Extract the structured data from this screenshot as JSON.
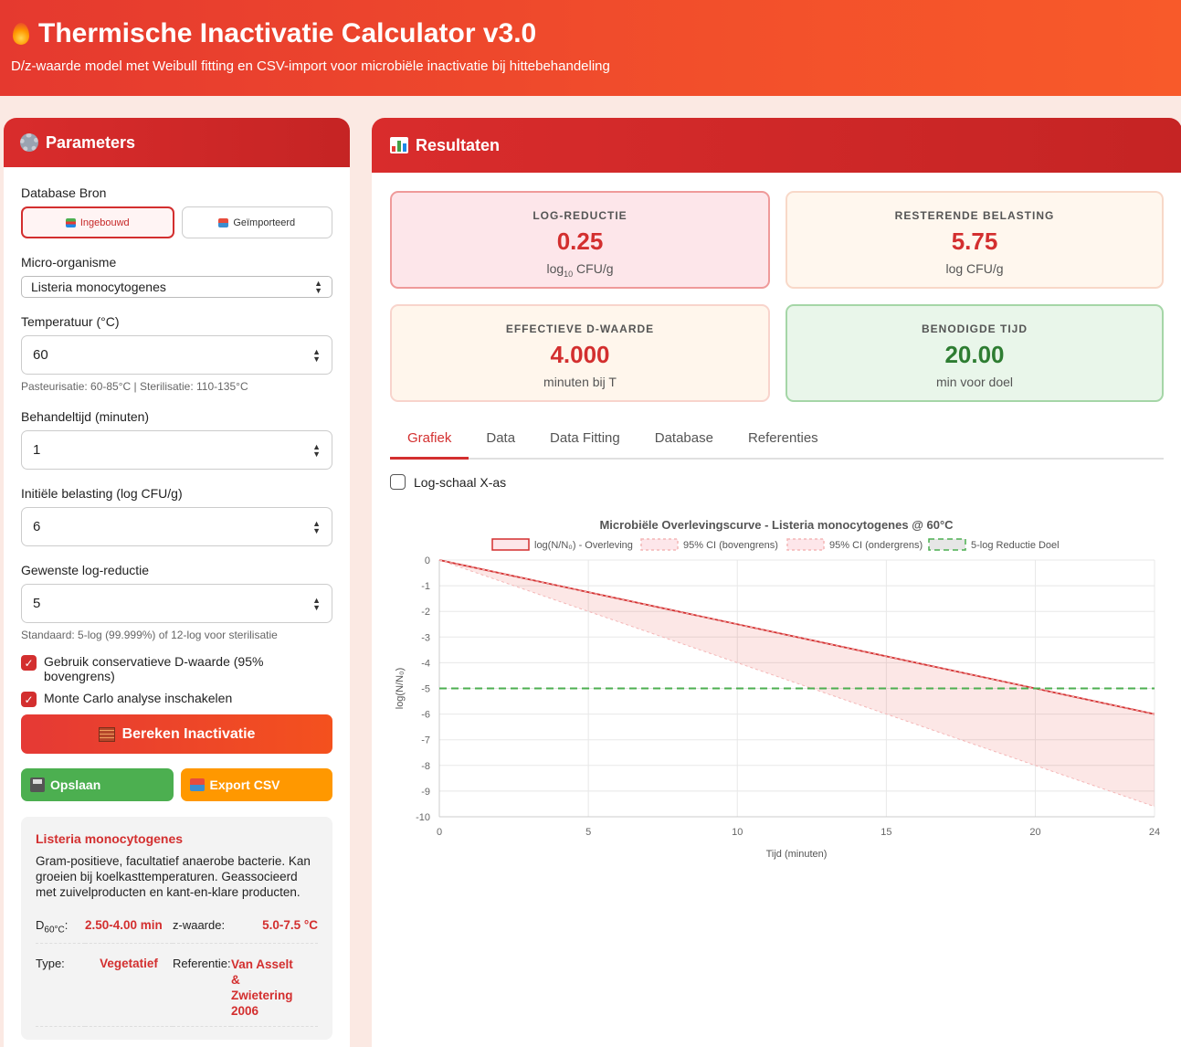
{
  "header": {
    "title": "Thermische Inactivatie Calculator v3.0",
    "subtitle": "D/z-waarde model met Weibull fitting en CSV-import voor microbiële inactivatie bij hittebehandeling"
  },
  "params": {
    "title": "Parameters",
    "db_label": "Database Bron",
    "db_builtin": "Ingebouwd",
    "db_imported": "Geïmporteerd",
    "organism_label": "Micro-organisme",
    "organism_value": "Listeria monocytogenes",
    "temp_label": "Temperatuur (°C)",
    "temp_value": "60",
    "temp_hint": "Pasteurisatie: 60-85°C | Sterilisatie: 110-135°C",
    "time_label": "Behandeltijd (minuten)",
    "time_value": "1",
    "init_label": "Initiële belasting (log CFU/g)",
    "init_value": "6",
    "red_label": "Gewenste log-reductie",
    "red_value": "5",
    "red_hint": "Standaard: 5-log (99.999%) of 12-log voor sterilisatie",
    "check_conservative": "Gebruik conservatieve D-waarde (95% bovengrens)",
    "check_montecarlo": "Monte Carlo analyse inschakelen",
    "calc_button": "Bereken Inactivatie",
    "save_button": "Opslaan",
    "export_button": "Export CSV"
  },
  "info": {
    "name": "Listeria monocytogenes",
    "description": "Gram-positieve, facultatief anaerobe bacterie. Kan groeien bij koelkasttemperaturen. Geassocieerd met zuivelproducten en kant-en-klare producten.",
    "d_label_main": "D",
    "d_label_sub": "60°C",
    "d_value": "2.50-4.00 min",
    "z_label": "z-waarde:",
    "z_value": "5.0-7.5 °C",
    "type_label": "Type:",
    "type_value": "Vegetatief",
    "ref_label": "Referentie:",
    "ref_value": "Van Asselt & Zwietering 2006"
  },
  "results": {
    "title": "Resultaten",
    "cards": [
      {
        "title": "LOG-REDUCTIE",
        "value": "0.25",
        "unit_main": "log",
        "unit_sub": "10",
        "unit_rest": " CFU/g"
      },
      {
        "title": "RESTERENDE BELASTING",
        "value": "5.75",
        "unit": "log CFU/g"
      },
      {
        "title": "EFFECTIEVE D-WAARDE",
        "value": "4.000",
        "unit": "minuten bij T"
      },
      {
        "title": "BENODIGDE TIJD",
        "value": "20.00",
        "unit": "min voor doel"
      }
    ],
    "tabs": [
      "Grafiek",
      "Data",
      "Data Fitting",
      "Database",
      "Referenties"
    ],
    "logscale_label": "Log-schaal X-as"
  },
  "colors": {
    "accent": "#d32f2f",
    "green": "#4caf50",
    "orange": "#ff9800"
  },
  "chart_data": {
    "type": "line",
    "title": "Microbiële Overlevingscurve - Listeria monocytogenes @ 60°C",
    "xlabel": "Tijd (minuten)",
    "ylabel": "log(N/N₀)",
    "xlim": [
      0,
      24
    ],
    "ylim": [
      -10,
      0
    ],
    "xticks": [
      0,
      5,
      10,
      15,
      20,
      24
    ],
    "yticks": [
      0,
      -1,
      -2,
      -3,
      -4,
      -5,
      -6,
      -7,
      -8,
      -9,
      -10
    ],
    "legend_position": "top",
    "grid": true,
    "series": [
      {
        "name": "log(N/N₀) - Overleving",
        "color": "#d32f2f",
        "style": "solid",
        "x": [
          0,
          24
        ],
        "y": [
          0,
          -6
        ]
      },
      {
        "name": "95% CI (bovengrens)",
        "color": "#f4b6b6",
        "style": "dashed",
        "x": [
          0,
          24
        ],
        "y": [
          0,
          -6
        ]
      },
      {
        "name": "95% CI (ondergrens)",
        "color": "#f4b6b6",
        "style": "dashed",
        "x": [
          0,
          24
        ],
        "y": [
          0,
          -9.6
        ]
      },
      {
        "name": "5-log Reductie Doel",
        "color": "#4caf50",
        "style": "dashed",
        "x": [
          0,
          24
        ],
        "y": [
          -5,
          -5
        ]
      }
    ]
  }
}
